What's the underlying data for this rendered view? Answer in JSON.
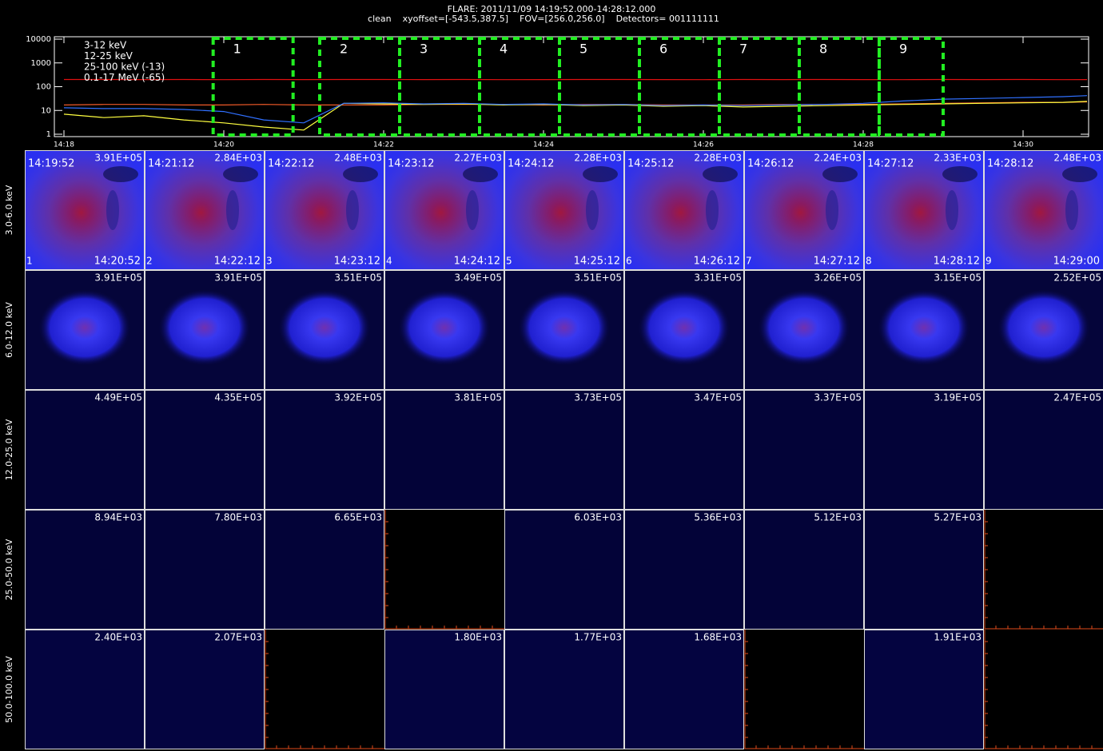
{
  "header": {
    "title": "FLARE: 2011/11/09 14:19:52.000-14:28:12.000",
    "subtitle": "clean    xyoffset=[-543.5,387.5]    FOV=[256.0,256.0]    Detectors= 001111111"
  },
  "chart_data": {
    "type": "line",
    "log_y": true,
    "x": [
      18,
      18.5,
      19,
      19.5,
      20,
      20.5,
      21,
      21.5,
      22,
      22.5,
      23,
      23.5,
      24,
      24.5,
      25,
      25.5,
      26,
      26.5,
      27,
      27.5,
      28,
      28.5,
      29,
      29.5,
      30,
      30.5,
      30.8
    ],
    "xlim": [
      17.88,
      30.82
    ],
    "xticks": [
      {
        "value": 18,
        "label": "14:18"
      },
      {
        "value": 20,
        "label": "14:20"
      },
      {
        "value": 22,
        "label": "14:22"
      },
      {
        "value": 24,
        "label": "14:24"
      },
      {
        "value": 26,
        "label": "14:26"
      },
      {
        "value": 28,
        "label": "14:28"
      },
      {
        "value": 30,
        "label": "14:30"
      }
    ],
    "ylim": [
      1,
      10000
    ],
    "yticks": [
      1,
      10,
      100,
      1000,
      10000
    ],
    "series": [
      {
        "name": "3-12 keV",
        "color": "#e01010",
        "values": [
          200,
          201,
          199,
          200,
          198,
          200,
          199,
          200,
          201,
          199,
          200,
          198,
          199,
          200,
          200,
          199,
          198,
          200,
          199,
          200,
          199,
          198,
          200,
          199,
          200,
          198,
          199
        ]
      },
      {
        "name": "12-25 keV",
        "color": "#f05a28",
        "values": [
          17,
          18,
          18,
          17,
          17,
          18,
          17,
          17,
          17,
          18,
          18,
          18,
          17,
          18,
          18,
          17,
          17,
          17,
          18,
          18,
          18,
          19,
          20,
          21,
          22,
          22,
          23
        ]
      },
      {
        "name": "25-100 keV (-13)",
        "color": "#ffff40",
        "values": [
          7,
          5,
          6,
          4,
          3,
          2,
          1.5,
          20,
          19,
          18,
          19,
          17,
          18,
          16,
          17,
          15,
          16,
          14,
          15,
          16,
          17,
          18,
          19,
          20,
          21,
          22,
          24
        ]
      },
      {
        "name": "0.1-17 MeV (-65)",
        "color": "#3070ff",
        "values": [
          13,
          12,
          12,
          11,
          9,
          4,
          3,
          20,
          21,
          19,
          20,
          18,
          19,
          17,
          18,
          16,
          17,
          16,
          17,
          18,
          20,
          25,
          30,
          32,
          35,
          38,
          42
        ]
      }
    ],
    "intervals": [
      {
        "label": "1",
        "start": 19.8667,
        "end": 20.8667
      },
      {
        "label": "2",
        "start": 21.2,
        "end": 22.2
      },
      {
        "label": "3",
        "start": 22.2,
        "end": 23.2
      },
      {
        "label": "4",
        "start": 23.2,
        "end": 24.2
      },
      {
        "label": "5",
        "start": 24.2,
        "end": 25.2
      },
      {
        "label": "6",
        "start": 25.2,
        "end": 26.2
      },
      {
        "label": "7",
        "start": 26.2,
        "end": 27.2
      },
      {
        "label": "8",
        "start": 27.2,
        "end": 28.2
      },
      {
        "label": "9",
        "start": 28.2,
        "end": 29.0
      }
    ]
  },
  "panels": {
    "rows": [
      {
        "label": "3.0-6.0 keV",
        "cells": [
          {
            "index": "1",
            "start": "14:19:52",
            "end": "14:20:52",
            "max": "3.91E+05"
          },
          {
            "index": "2",
            "start": "14:21:12",
            "end": "14:22:12",
            "max": "2.84E+03"
          },
          {
            "index": "3",
            "start": "14:22:12",
            "end": "14:23:12",
            "max": "2.48E+03"
          },
          {
            "index": "4",
            "start": "14:23:12",
            "end": "14:24:12",
            "max": "2.27E+03"
          },
          {
            "index": "5",
            "start": "14:24:12",
            "end": "14:25:12",
            "max": "2.28E+03"
          },
          {
            "index": "6",
            "start": "14:25:12",
            "end": "14:26:12",
            "max": "2.28E+03"
          },
          {
            "index": "7",
            "start": "14:26:12",
            "end": "14:27:12",
            "max": "2.24E+03"
          },
          {
            "index": "8",
            "start": "14:27:12",
            "end": "14:28:12",
            "max": "2.33E+03"
          },
          {
            "index": "9",
            "start": "14:28:12",
            "end": "14:29:00",
            "max": "2.48E+03"
          }
        ]
      },
      {
        "label": "6.0-12.0 keV",
        "cells": [
          {
            "max": "3.91E+05"
          },
          {
            "max": "3.91E+05"
          },
          {
            "max": "3.51E+05"
          },
          {
            "max": "3.49E+05"
          },
          {
            "max": "3.51E+05"
          },
          {
            "max": "3.31E+05"
          },
          {
            "max": "3.26E+05"
          },
          {
            "max": "3.15E+05"
          },
          {
            "max": "2.52E+05"
          }
        ]
      },
      {
        "label": "12.0-25.0 keV",
        "cells": [
          {
            "max": "4.49E+05"
          },
          {
            "max": "4.35E+05"
          },
          {
            "max": "3.92E+05"
          },
          {
            "max": "3.81E+05"
          },
          {
            "max": "3.73E+05"
          },
          {
            "max": "3.47E+05"
          },
          {
            "max": "3.37E+05"
          },
          {
            "max": "3.19E+05"
          },
          {
            "max": "2.47E+05"
          }
        ]
      },
      {
        "label": "25.0-50.0 keV",
        "cells": [
          {
            "max": "8.94E+03"
          },
          {
            "max": "7.80E+03"
          },
          {
            "max": "6.65E+03"
          },
          null,
          {
            "max": "6.03E+03"
          },
          {
            "max": "5.36E+03"
          },
          {
            "max": "5.12E+03"
          },
          {
            "max": "5.27E+03"
          },
          null
        ]
      },
      {
        "label": "50.0-100.0 keV",
        "cells": [
          {
            "max": "2.40E+03"
          },
          {
            "max": "2.07E+03"
          },
          null,
          {
            "max": "1.80E+03"
          },
          {
            "max": "1.77E+03"
          },
          {
            "max": "1.68E+03"
          },
          null,
          {
            "max": "1.91E+03"
          },
          null
        ]
      }
    ]
  }
}
